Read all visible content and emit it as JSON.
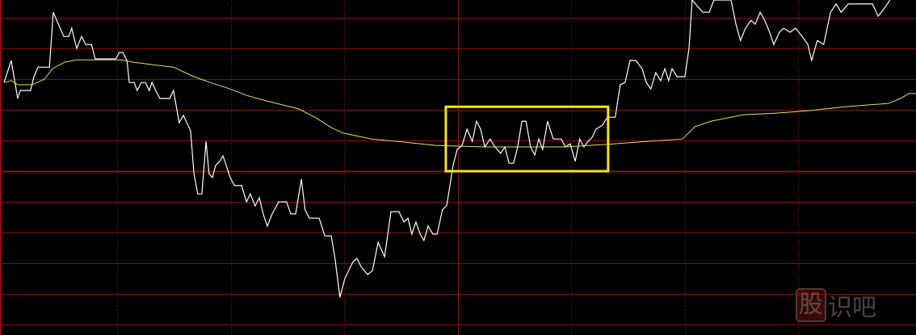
{
  "chart_data": {
    "type": "line",
    "title": "",
    "xlabel": "",
    "ylabel": "",
    "xlim": [
      0,
      241.1
    ],
    "ylim": [
      -5.34,
      5.58
    ],
    "grid": true,
    "colors": {
      "background": "#000000",
      "grid": "#8b0f0f",
      "price": "#ffffff",
      "average": "#e8e34a",
      "highlight": "#f5e51a"
    },
    "h_grid_levels": [
      5,
      4,
      3,
      2,
      1,
      0,
      -1,
      -2,
      -3,
      -4,
      -5
    ],
    "v_grid_x": [
      30,
      60,
      90,
      120,
      150,
      180,
      210
    ],
    "highlight_box": {
      "x": [
        116.8,
        159.7
      ],
      "y": [
        0,
        2.1
      ]
    },
    "series": [
      {
        "role": "price",
        "points": [
          [
            0,
            2.89
          ],
          [
            1.9,
            3.61
          ],
          [
            3.6,
            2.37
          ],
          [
            4.3,
            2.63
          ],
          [
            7,
            2.63
          ],
          [
            7.9,
            3.08
          ],
          [
            9,
            3.39
          ],
          [
            12,
            3.39
          ],
          [
            13,
            5.18
          ],
          [
            15.8,
            4.39
          ],
          [
            17.1,
            4.39
          ],
          [
            17.9,
            4.66
          ],
          [
            19.2,
            4
          ],
          [
            20.5,
            4.39
          ],
          [
            21.6,
            4.13
          ],
          [
            23.1,
            4.13
          ],
          [
            24.1,
            3.66
          ],
          [
            29.5,
            3.66
          ],
          [
            30.5,
            3.87
          ],
          [
            31.4,
            3.87
          ],
          [
            32.5,
            3.61
          ],
          [
            33.1,
            2.89
          ],
          [
            34.4,
            2.89
          ],
          [
            35.2,
            2.63
          ],
          [
            36.3,
            2.89
          ],
          [
            37.4,
            2.89
          ],
          [
            38.4,
            2.63
          ],
          [
            39.1,
            2.89
          ],
          [
            40.1,
            2.63
          ],
          [
            41.2,
            2.37
          ],
          [
            43.8,
            2.37
          ],
          [
            44.8,
            2.63
          ],
          [
            46.3,
            1.58
          ],
          [
            47.4,
            1.82
          ],
          [
            49.3,
            1.32
          ],
          [
            50.2,
            -0.08
          ],
          [
            51.2,
            -0.74
          ],
          [
            52.3,
            -0.74
          ],
          [
            53.4,
            0.97
          ],
          [
            54.2,
            -0.08
          ],
          [
            55.1,
            -0.21
          ],
          [
            55.9,
            0.18
          ],
          [
            57,
            0.32
          ],
          [
            57.9,
            0.5
          ],
          [
            59.8,
            -0.21
          ],
          [
            60.9,
            -0.47
          ],
          [
            62.8,
            -0.47
          ],
          [
            64.1,
            -1
          ],
          [
            65.1,
            -0.74
          ],
          [
            66.4,
            -1.13
          ],
          [
            67.5,
            -0.87
          ],
          [
            68.5,
            -1.39
          ],
          [
            69.6,
            -1.79
          ],
          [
            70.9,
            -1.39
          ],
          [
            72.6,
            -1
          ],
          [
            74.7,
            -1
          ],
          [
            75.8,
            -1.39
          ],
          [
            77.1,
            -1.39
          ],
          [
            78.6,
            -0.26
          ],
          [
            79.6,
            -1.26
          ],
          [
            80.7,
            -1.53
          ],
          [
            83.3,
            -1.53
          ],
          [
            84.8,
            -2.11
          ],
          [
            86.5,
            -2.11
          ],
          [
            87.5,
            -2.84
          ],
          [
            88.8,
            -4.11
          ],
          [
            90.1,
            -3.5
          ],
          [
            92.2,
            -2.97
          ],
          [
            93.3,
            -2.84
          ],
          [
            94.4,
            -3.11
          ],
          [
            96.1,
            -3.37
          ],
          [
            97.4,
            -3.24
          ],
          [
            98.9,
            -2.32
          ],
          [
            100.6,
            -2.79
          ],
          [
            102.3,
            -1.32
          ],
          [
            104.4,
            -1.32
          ],
          [
            105.7,
            -1.66
          ],
          [
            106.8,
            -1.53
          ],
          [
            107.8,
            -2.05
          ],
          [
            108.9,
            -1.66
          ],
          [
            110,
            -2.05
          ],
          [
            111,
            -2.26
          ],
          [
            112.1,
            -1.79
          ],
          [
            113.4,
            -2.05
          ],
          [
            114.5,
            -2.05
          ],
          [
            115.9,
            -1.26
          ],
          [
            117,
            -1.13
          ],
          [
            117.7,
            -0.61
          ],
          [
            118.7,
            0.18
          ],
          [
            119.8,
            0.71
          ],
          [
            121.1,
            0.84
          ],
          [
            122.4,
            1.37
          ],
          [
            123.8,
            0.97
          ],
          [
            124.9,
            1.63
          ],
          [
            126,
            1.37
          ],
          [
            127.1,
            0.79
          ],
          [
            128.5,
            1.05
          ],
          [
            129.8,
            0.79
          ],
          [
            131.3,
            0.58
          ],
          [
            132.4,
            0.79
          ],
          [
            133.5,
            0.26
          ],
          [
            134.7,
            0.26
          ],
          [
            135.8,
            0.79
          ],
          [
            136.9,
            1.63
          ],
          [
            138,
            1.63
          ],
          [
            139.2,
            0.79
          ],
          [
            140.3,
            0.53
          ],
          [
            141.4,
            1.05
          ],
          [
            142.4,
            0.71
          ],
          [
            143.7,
            1.63
          ],
          [
            145.2,
            1.05
          ],
          [
            147.3,
            1.05
          ],
          [
            148.4,
            0.79
          ],
          [
            149.7,
            0.89
          ],
          [
            151,
            0.32
          ],
          [
            152.2,
            1.05
          ],
          [
            153.3,
            0.79
          ],
          [
            154.4,
            0.97
          ],
          [
            155.5,
            1.11
          ],
          [
            156.5,
            1.37
          ],
          [
            158.2,
            1.5
          ],
          [
            159.5,
            1.76
          ],
          [
            161.6,
            1.76
          ],
          [
            162.9,
            2.82
          ],
          [
            164.2,
            2.89
          ],
          [
            165.5,
            3.61
          ],
          [
            167,
            3.61
          ],
          [
            168.7,
            3.34
          ],
          [
            169.8,
            2.89
          ],
          [
            171,
            2.68
          ],
          [
            172.3,
            3.21
          ],
          [
            173.6,
            2.95
          ],
          [
            174.7,
            3.34
          ],
          [
            175.7,
            2.95
          ],
          [
            176.6,
            3.34
          ],
          [
            177.9,
            3.08
          ],
          [
            180,
            3.08
          ],
          [
            181.1,
            4
          ],
          [
            181.9,
            5.58
          ],
          [
            184.7,
            5.18
          ],
          [
            186.4,
            5.18
          ],
          [
            187.7,
            5.58
          ],
          [
            192.2,
            5.58
          ],
          [
            193.5,
            4.79
          ],
          [
            194.7,
            4.26
          ],
          [
            196,
            4.66
          ],
          [
            197.5,
            4.92
          ],
          [
            198.6,
            4.79
          ],
          [
            199.9,
            5.18
          ],
          [
            201.1,
            4.92
          ],
          [
            202.4,
            4.53
          ],
          [
            203.5,
            4.13
          ],
          [
            205,
            4.53
          ],
          [
            206.1,
            4.66
          ],
          [
            207.8,
            4.53
          ],
          [
            209.3,
            4.66
          ],
          [
            211,
            4.39
          ],
          [
            212.5,
            4.13
          ],
          [
            213.5,
            3.61
          ],
          [
            215,
            4.26
          ],
          [
            216.7,
            4.13
          ],
          [
            218.5,
            5.18
          ],
          [
            220,
            5.45
          ],
          [
            221.3,
            5.18
          ],
          [
            223.2,
            5.45
          ],
          [
            229.6,
            5.45
          ],
          [
            231.1,
            5.05
          ],
          [
            232.8,
            5.32
          ],
          [
            234.2,
            5.58
          ]
        ]
      },
      {
        "role": "average",
        "points": [
          [
            0,
            2.89
          ],
          [
            1.9,
            2.95
          ],
          [
            3.6,
            2.82
          ],
          [
            7.5,
            2.82
          ],
          [
            10.7,
            3
          ],
          [
            12.8,
            3.34
          ],
          [
            16,
            3.55
          ],
          [
            19.2,
            3.63
          ],
          [
            31,
            3.63
          ],
          [
            34.2,
            3.55
          ],
          [
            39.5,
            3.47
          ],
          [
            44.8,
            3.39
          ],
          [
            50.2,
            3.08
          ],
          [
            54.5,
            2.89
          ],
          [
            59.8,
            2.68
          ],
          [
            64.1,
            2.47
          ],
          [
            69.4,
            2.29
          ],
          [
            77.9,
            2.03
          ],
          [
            82.2,
            1.76
          ],
          [
            86.5,
            1.42
          ],
          [
            89.7,
            1.24
          ],
          [
            97.2,
            1.05
          ],
          [
            105.7,
            0.95
          ],
          [
            114.2,
            0.84
          ],
          [
            127.1,
            0.79
          ],
          [
            148.4,
            0.79
          ],
          [
            161.2,
            0.89
          ],
          [
            169.8,
            0.97
          ],
          [
            179.4,
            1.05
          ],
          [
            182.6,
            1.45
          ],
          [
            186.9,
            1.63
          ],
          [
            195.4,
            1.84
          ],
          [
            203.9,
            1.89
          ],
          [
            212.5,
            1.97
          ],
          [
            223.2,
            2.11
          ],
          [
            233.8,
            2.21
          ],
          [
            237,
            2.37
          ],
          [
            239.2,
            2.53
          ],
          [
            241.1,
            2.53
          ]
        ]
      }
    ]
  },
  "watermark": {
    "text_box": "股",
    "text_rest": "识吧"
  }
}
